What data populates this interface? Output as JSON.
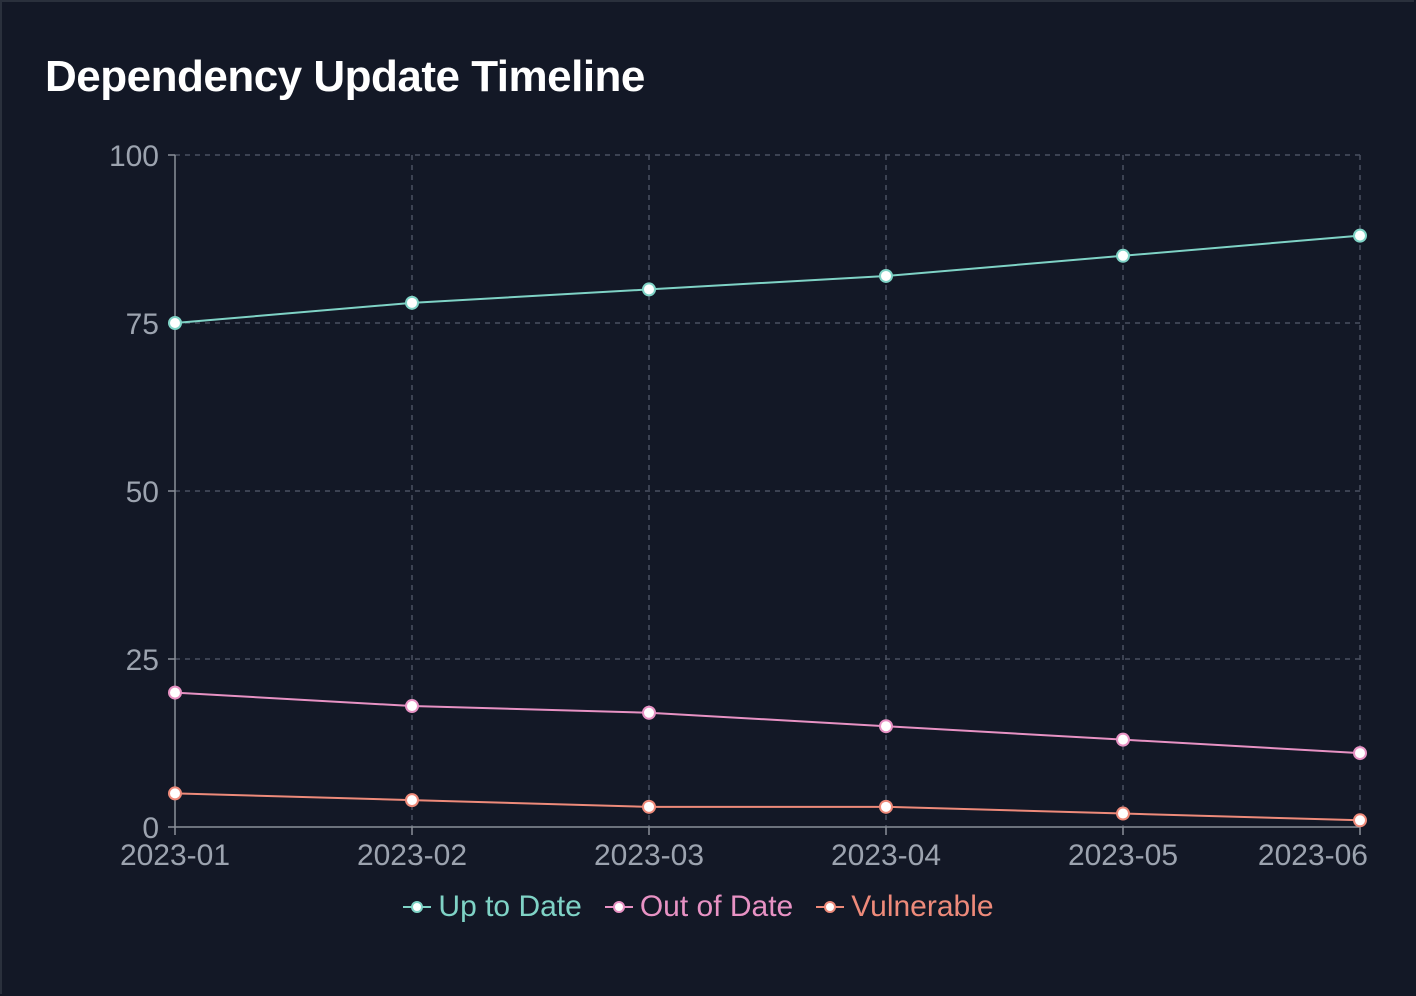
{
  "title": "Dependency Update Timeline",
  "chart_data": {
    "type": "line",
    "title": "Dependency Update Timeline",
    "xlabel": "",
    "ylabel": "",
    "categories": [
      "2023-01",
      "2023-02",
      "2023-03",
      "2023-04",
      "2023-05",
      "2023-06"
    ],
    "ylim": [
      0,
      100
    ],
    "yticks": [
      0,
      25,
      50,
      75,
      100
    ],
    "grid": true,
    "legend_position": "bottom-center",
    "series": [
      {
        "name": "Up to Date",
        "color": "#7fd3c6",
        "values": [
          75,
          78,
          80,
          82,
          85,
          88
        ]
      },
      {
        "name": "Out of Date",
        "color": "#e892c4",
        "values": [
          20,
          18,
          17,
          15,
          13,
          11
        ]
      },
      {
        "name": "Vulnerable",
        "color": "#ee8a7a",
        "values": [
          5,
          4,
          3,
          3,
          2,
          1
        ]
      }
    ]
  }
}
